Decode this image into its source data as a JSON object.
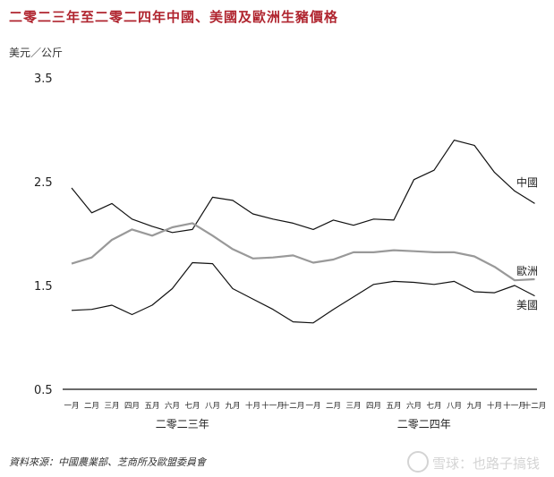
{
  "chart_data": {
    "type": "line",
    "title": "二零二三年至二零二四年中國、美國及歐洲生豬價格",
    "ylabel": "美元／公斤",
    "ylim": [
      0.5,
      3.5
    ],
    "yticks": [
      "3.5",
      "2.5",
      "1.5",
      "0.5"
    ],
    "categories": [
      "一月",
      "二月",
      "三月",
      "四月",
      "五月",
      "六月",
      "七月",
      "八月",
      "九月",
      "十月",
      "十一月",
      "十二月",
      "一月",
      "二月",
      "三月",
      "四月",
      "五月",
      "六月",
      "七月",
      "八月",
      "九月",
      "十月",
      "十一月",
      "十二月"
    ],
    "year_groups": [
      {
        "label": "二零二三年",
        "start": 0,
        "end": 11
      },
      {
        "label": "二零二四年",
        "start": 12,
        "end": 23
      }
    ],
    "series": [
      {
        "name": "中國",
        "color": "#111111",
        "values": [
          2.44,
          2.2,
          2.29,
          2.14,
          2.07,
          2.01,
          2.04,
          2.35,
          2.32,
          2.19,
          2.14,
          2.1,
          2.04,
          2.13,
          2.08,
          2.14,
          2.13,
          2.52,
          2.61,
          2.9,
          2.85,
          2.59,
          2.41,
          2.29
        ]
      },
      {
        "name": "歐洲",
        "color": "#999999",
        "values": [
          1.71,
          1.77,
          1.94,
          2.04,
          1.98,
          2.06,
          2.1,
          1.98,
          1.85,
          1.76,
          1.77,
          1.79,
          1.72,
          1.75,
          1.82,
          1.82,
          1.84,
          1.83,
          1.82,
          1.82,
          1.78,
          1.68,
          1.55,
          1.56
        ]
      },
      {
        "name": "美國",
        "color": "#111111",
        "values": [
          1.26,
          1.27,
          1.31,
          1.22,
          1.31,
          1.47,
          1.72,
          1.71,
          1.47,
          1.37,
          1.27,
          1.15,
          1.14,
          1.27,
          1.39,
          1.51,
          1.54,
          1.53,
          1.51,
          1.54,
          1.44,
          1.43,
          1.5,
          1.4
        ]
      }
    ]
  },
  "footer": {
    "source": "資料來源：中國農業部、芝商所及歐盟委員會",
    "watermark": "雪球：也路子搞钱"
  }
}
